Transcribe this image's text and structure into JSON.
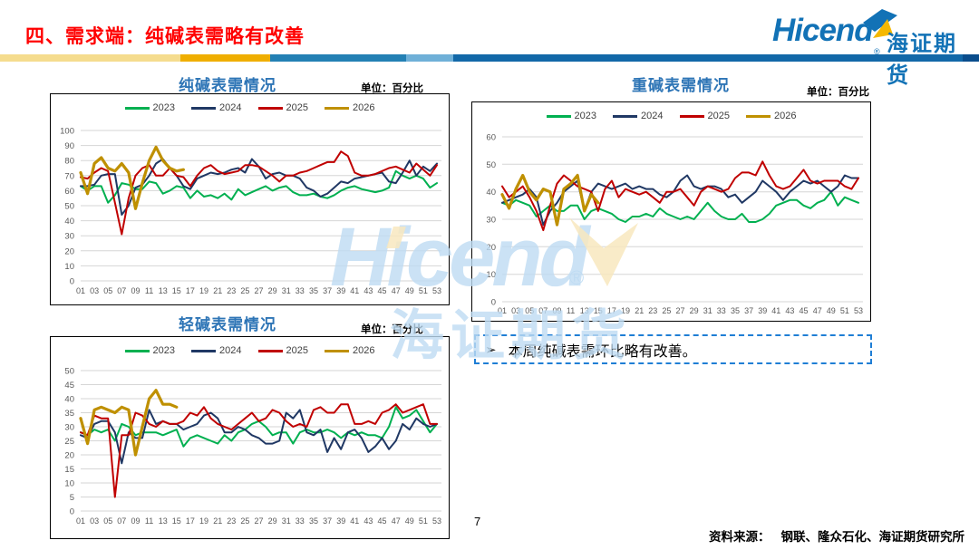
{
  "header": {
    "title": "四、需求端：纯碱表需略有改善"
  },
  "logo": {
    "brand": "Hicend",
    "reg": "®",
    "cn": "海证期货"
  },
  "watermark": {
    "brand": "Hicend",
    "reg": "®",
    "cn": "海证期货"
  },
  "note": {
    "bullet": "➢",
    "text": "本周纯碱表需环比略有改善。"
  },
  "footer": {
    "page": "7",
    "source_label": "资料来源：",
    "source": "钢联、隆众石化、海证期货研究所"
  },
  "chart_data": [
    {
      "type": "line",
      "title": "纯碱表需情况",
      "unit_label": "单位：百分比",
      "grid": "horizontal",
      "legend_position": "top-center",
      "x_weeks": 53,
      "x_tick_labels": [
        "01",
        "03",
        "05",
        "07",
        "09",
        "11",
        "13",
        "15",
        "17",
        "19",
        "21",
        "23",
        "25",
        "27",
        "29",
        "31",
        "33",
        "35",
        "37",
        "39",
        "41",
        "43",
        "45",
        "47",
        "49",
        "51",
        "53"
      ],
      "ylim": [
        0,
        100
      ],
      "y_step": 10,
      "series": [
        {
          "name": "2023",
          "color": "#00B050",
          "width": 2,
          "values": [
            63,
            60,
            63,
            63,
            52,
            57,
            65,
            64,
            61,
            61,
            66,
            65,
            58,
            60,
            63,
            62,
            55,
            60,
            56,
            57,
            55,
            58,
            54,
            61,
            57,
            59,
            61,
            63,
            60,
            62,
            63,
            59,
            57,
            57,
            58,
            56,
            55,
            57,
            60,
            62,
            63,
            61,
            60,
            59,
            60,
            62,
            73,
            70,
            68,
            70,
            68,
            62,
            65
          ]
        },
        {
          "name": "2024",
          "color": "#203864",
          "width": 2,
          "values": [
            63,
            63,
            64,
            70,
            71,
            71,
            44,
            50,
            62,
            64,
            70,
            78,
            81,
            75,
            70,
            63,
            61,
            68,
            70,
            72,
            71,
            72,
            74,
            75,
            72,
            81,
            76,
            68,
            71,
            72,
            70,
            70,
            68,
            62,
            60,
            56,
            58,
            62,
            66,
            65,
            68,
            69,
            70,
            71,
            72,
            66,
            65,
            72,
            80,
            70,
            76,
            73,
            78
          ]
        },
        {
          "name": "2025",
          "color": "#C00000",
          "width": 2,
          "values": [
            69,
            68,
            72,
            75,
            73,
            52,
            31,
            55,
            70,
            75,
            77,
            70,
            70,
            75,
            70,
            69,
            63,
            70,
            75,
            77,
            73,
            71,
            72,
            73,
            77,
            77,
            76,
            73,
            70,
            66,
            70,
            70,
            72,
            73,
            75,
            77,
            79,
            79,
            86,
            83,
            72,
            70,
            70,
            71,
            73,
            75,
            76,
            74,
            72,
            78,
            74,
            70,
            77
          ]
        },
        {
          "name": "2026",
          "color": "#BF9000",
          "width": 3.2,
          "values": [
            72,
            58,
            78,
            82,
            75,
            73,
            78,
            72,
            48,
            65,
            80,
            89,
            80,
            75,
            73,
            74
          ]
        }
      ]
    },
    {
      "type": "line",
      "title": "重碱表需情况",
      "unit_label": "单位：百分比",
      "grid": "horizontal",
      "legend_position": "top-center",
      "x_weeks": 53,
      "x_tick_labels": [
        "01",
        "03",
        "05",
        "07",
        "09",
        "11",
        "13",
        "15",
        "17",
        "19",
        "21",
        "23",
        "25",
        "27",
        "29",
        "31",
        "33",
        "35",
        "37",
        "39",
        "41",
        "43",
        "45",
        "47",
        "49",
        "51",
        "53"
      ],
      "ylim": [
        0,
        60
      ],
      "y_step": 10,
      "series": [
        {
          "name": "2023",
          "color": "#00B050",
          "width": 2,
          "values": [
            36,
            35,
            37,
            36,
            35,
            31,
            33,
            35,
            33,
            33,
            35,
            35,
            30,
            33,
            34,
            33,
            32,
            30,
            29,
            31,
            31,
            32,
            31,
            34,
            32,
            31,
            30,
            31,
            30,
            33,
            36,
            33,
            31,
            30,
            30,
            32,
            29,
            29,
            30,
            32,
            35,
            36,
            37,
            37,
            35,
            34,
            36,
            37,
            40,
            35,
            38,
            37,
            36
          ]
        },
        {
          "name": "2024",
          "color": "#203864",
          "width": 2,
          "values": [
            36,
            37,
            38,
            39,
            41,
            38,
            28,
            33,
            36,
            40,
            42,
            44,
            33,
            40,
            43,
            42,
            41,
            42,
            43,
            41,
            42,
            41,
            41,
            39,
            38,
            40,
            44,
            46,
            42,
            41,
            42,
            42,
            41,
            38,
            39,
            36,
            38,
            40,
            44,
            42,
            40,
            37,
            40,
            42,
            44,
            43,
            44,
            42,
            40,
            42,
            46,
            45,
            45
          ]
        },
        {
          "name": "2025",
          "color": "#C00000",
          "width": 2,
          "values": [
            42,
            38,
            40,
            42,
            38,
            33,
            26,
            35,
            43,
            46,
            44,
            42,
            41,
            40,
            33,
            41,
            44,
            38,
            41,
            40,
            39,
            40,
            38,
            36,
            40,
            40,
            41,
            38,
            35,
            40,
            42,
            41,
            40,
            41,
            45,
            47,
            47,
            46,
            51,
            46,
            42,
            41,
            42,
            45,
            48,
            44,
            43,
            44,
            44,
            44,
            42,
            41,
            45
          ]
        },
        {
          "name": "2026",
          "color": "#BF9000",
          "width": 3.2,
          "values": [
            39,
            34,
            41,
            46,
            40,
            37,
            41,
            40,
            28,
            41,
            43,
            46,
            33,
            39,
            36
          ]
        }
      ]
    },
    {
      "type": "line",
      "title": "轻碱表需情况",
      "unit_label": "单位：百分比",
      "grid": "horizontal",
      "legend_position": "top-center",
      "x_weeks": 53,
      "x_tick_labels": [
        "01",
        "03",
        "05",
        "07",
        "09",
        "11",
        "13",
        "15",
        "17",
        "19",
        "21",
        "23",
        "25",
        "27",
        "29",
        "31",
        "33",
        "35",
        "37",
        "39",
        "41",
        "43",
        "45",
        "47",
        "49",
        "51",
        "53"
      ],
      "ylim": [
        0,
        50
      ],
      "y_step": 5,
      "series": [
        {
          "name": "2023",
          "color": "#00B050",
          "width": 2,
          "values": [
            28,
            27,
            29,
            28,
            29,
            25,
            31,
            30,
            27,
            28,
            28,
            28,
            27,
            28,
            29,
            23,
            26,
            27,
            26,
            25,
            24,
            27,
            25,
            28,
            29,
            31,
            32,
            30,
            27,
            28,
            28,
            24,
            28,
            29,
            28,
            28,
            29,
            28,
            26,
            28,
            27,
            28,
            27,
            27,
            26,
            30,
            37,
            33,
            34,
            36,
            32,
            28,
            31
          ]
        },
        {
          "name": "2024",
          "color": "#203864",
          "width": 2,
          "values": [
            27,
            26,
            31,
            32,
            32,
            28,
            17,
            28,
            26,
            26,
            36,
            31,
            32,
            31,
            31,
            29,
            30,
            31,
            34,
            35,
            33,
            28,
            28,
            30,
            29,
            27,
            26,
            24,
            24,
            25,
            35,
            33,
            36,
            28,
            27,
            29,
            21,
            26,
            22,
            28,
            29,
            26,
            21,
            23,
            26,
            22,
            25,
            31,
            29,
            33,
            31,
            30,
            31
          ]
        },
        {
          "name": "2025",
          "color": "#C00000",
          "width": 2,
          "values": [
            28,
            27,
            34,
            33,
            33,
            5,
            27,
            27,
            35,
            34,
            31,
            30,
            32,
            31,
            31,
            32,
            35,
            34,
            37,
            33,
            31,
            30,
            29,
            31,
            33,
            35,
            32,
            33,
            36,
            35,
            32,
            30,
            31,
            30,
            36,
            37,
            35,
            35,
            38,
            38,
            31,
            31,
            32,
            31,
            35,
            36,
            38,
            35,
            36,
            37,
            38,
            31,
            31
          ]
        },
        {
          "name": "2026",
          "color": "#BF9000",
          "width": 3.2,
          "values": [
            33,
            24,
            36,
            37,
            36,
            35,
            37,
            36,
            20,
            30,
            40,
            43,
            38,
            38,
            37
          ]
        }
      ]
    }
  ]
}
